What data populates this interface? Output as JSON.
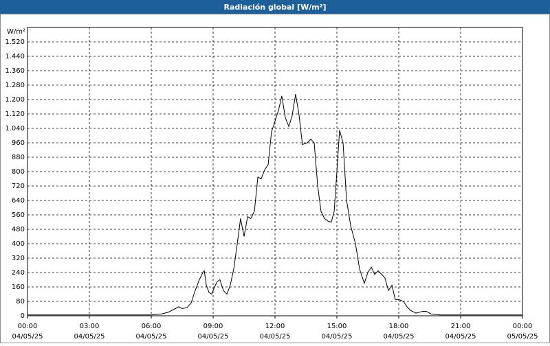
{
  "chart_data": {
    "type": "line",
    "title": "Radiación global [W/m²]",
    "y_unit": "W/m²",
    "x": [
      0,
      3,
      6,
      6.5,
      6.83,
      7.17,
      7.33,
      7.5,
      7.73,
      7.93,
      8.1,
      8.33,
      8.5,
      8.57,
      8.67,
      8.8,
      8.93,
      9.07,
      9.2,
      9.33,
      9.5,
      9.67,
      9.83,
      10,
      10.17,
      10.33,
      10.5,
      10.67,
      10.83,
      11,
      11.17,
      11.33,
      11.5,
      11.67,
      11.83,
      12,
      12.17,
      12.33,
      12.5,
      12.67,
      12.83,
      13,
      13.17,
      13.33,
      13.57,
      13.73,
      13.9,
      14.07,
      14.23,
      14.4,
      14.57,
      14.73,
      14.87,
      15,
      15.13,
      15.3,
      15.47,
      15.67,
      15.9,
      16.1,
      16.33,
      16.5,
      16.67,
      16.83,
      17,
      17.17,
      17.33,
      17.5,
      17.67,
      17.83,
      18,
      18.23,
      18.4,
      18.57,
      18.83,
      19.17,
      19.33,
      19.57,
      20,
      24
    ],
    "series": [
      {
        "name": "Radiación global",
        "color": "#000000",
        "values": [
          5,
          5,
          5,
          10,
          20,
          40,
          50,
          40,
          45,
          70,
          130,
          200,
          240,
          250,
          170,
          130,
          120,
          160,
          190,
          200,
          140,
          120,
          170,
          260,
          400,
          540,
          440,
          550,
          540,
          580,
          770,
          760,
          810,
          840,
          1020,
          1080,
          1140,
          1220,
          1100,
          1050,
          1110,
          1230,
          1110,
          950,
          960,
          980,
          960,
          720,
          580,
          540,
          525,
          520,
          580,
          800,
          1030,
          960,
          640,
          500,
          400,
          260,
          180,
          240,
          270,
          230,
          250,
          230,
          210,
          140,
          170,
          90,
          90,
          80,
          50,
          30,
          15,
          25,
          25,
          10,
          5,
          5
        ]
      }
    ],
    "xlim": [
      0,
      24
    ],
    "xticks": [
      {
        "value": 0,
        "label": "00:00"
      },
      {
        "value": 3,
        "label": "03:00"
      },
      {
        "value": 6,
        "label": "06:00"
      },
      {
        "value": 9,
        "label": "09:00"
      },
      {
        "value": 12,
        "label": "12:00"
      },
      {
        "value": 15,
        "label": "15:00"
      },
      {
        "value": 18,
        "label": "18:00"
      },
      {
        "value": 21,
        "label": "21:00"
      },
      {
        "value": 24,
        "label": "00:00"
      }
    ],
    "xtick_dates": [
      "04/05/25",
      "04/05/25",
      "04/05/25",
      "04/05/25",
      "04/05/25",
      "04/05/25",
      "04/05/25",
      "04/05/25",
      "05/05/25"
    ],
    "ylim": [
      0,
      1600
    ],
    "yticks": [
      0,
      80,
      160,
      240,
      320,
      400,
      480,
      560,
      640,
      720,
      800,
      880,
      960,
      {
        "value": 1040,
        "label": "1.040"
      },
      {
        "value": 1120,
        "label": "1.120"
      },
      {
        "value": 1200,
        "label": "1.200"
      },
      {
        "value": 1280,
        "label": "1.280"
      },
      {
        "value": 1360,
        "label": "1.360"
      },
      {
        "value": 1440,
        "label": "1.440"
      },
      {
        "value": 1520,
        "label": "1.520"
      }
    ],
    "grid": true
  }
}
